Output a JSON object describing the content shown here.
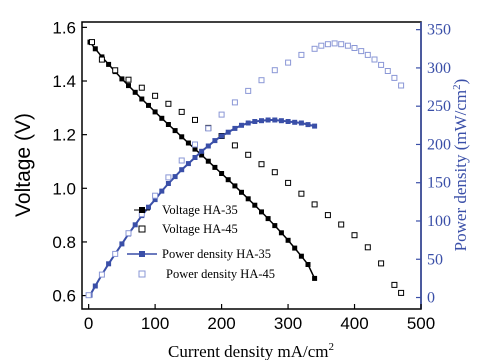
{
  "chart_data": {
    "type": "line",
    "xlabel": "Current density mA/cm",
    "xlabel_sup": "2",
    "ylabel_left": "Voltage (V)",
    "ylabel_right": "Power density (mW/cm",
    "ylabel_right_sup": "2",
    "ylabel_right_close": ")",
    "xlim": [
      -10,
      500
    ],
    "ylim_left": [
      0.55,
      1.62
    ],
    "ylim_right": [
      -15,
      360
    ],
    "x_ticks": [
      "0",
      "100",
      "200",
      "300",
      "400",
      "500"
    ],
    "y_left_ticks": [
      "0.6",
      "0.8",
      "1.0",
      "1.2",
      "1.4",
      "1.6"
    ],
    "y_right_ticks": [
      "0",
      "50",
      "100",
      "150",
      "200",
      "250",
      "300",
      "350"
    ],
    "legend_position": "lower-left",
    "colors": {
      "black": "#000000",
      "blue": "#3a4fa8",
      "light_blue": "#8a97d6"
    },
    "series": [
      {
        "name": "Voltage HA-35",
        "axis": "left",
        "marker": "filled-square",
        "color": "#000000",
        "x": [
          2,
          10,
          20,
          30,
          40,
          50,
          60,
          70,
          80,
          90,
          100,
          110,
          120,
          130,
          140,
          150,
          160,
          170,
          180,
          190,
          200,
          210,
          220,
          230,
          240,
          250,
          260,
          270,
          280,
          290,
          300,
          310,
          320,
          330,
          340
        ],
        "y": [
          1.545,
          1.52,
          1.49,
          1.462,
          1.435,
          1.408,
          1.383,
          1.358,
          1.333,
          1.309,
          1.285,
          1.261,
          1.238,
          1.215,
          1.192,
          1.169,
          1.146,
          1.124,
          1.101,
          1.078,
          1.055,
          1.032,
          1.009,
          0.985,
          0.961,
          0.937,
          0.912,
          0.887,
          0.861,
          0.834,
          0.806,
          0.777,
          0.747,
          0.716,
          0.664
        ]
      },
      {
        "name": "Voltage HA-45",
        "axis": "left",
        "marker": "open-square",
        "color": "#000000",
        "x": [
          5,
          20,
          40,
          60,
          80,
          100,
          120,
          140,
          160,
          180,
          200,
          220,
          240,
          260,
          280,
          300,
          320,
          340,
          360,
          380,
          400,
          420,
          440,
          460,
          470
        ],
        "y": [
          1.545,
          1.48,
          1.44,
          1.405,
          1.375,
          1.345,
          1.315,
          1.285,
          1.255,
          1.225,
          1.195,
          1.16,
          1.125,
          1.09,
          1.06,
          1.02,
          0.98,
          0.94,
          0.9,
          0.865,
          0.825,
          0.78,
          0.72,
          0.64,
          0.61
        ]
      },
      {
        "name": "Power density HA-35",
        "axis": "right",
        "marker": "filled-square-line",
        "color": "#3a4fa8",
        "x": [
          2,
          10,
          20,
          30,
          40,
          50,
          60,
          70,
          80,
          90,
          100,
          110,
          120,
          130,
          140,
          150,
          160,
          170,
          180,
          190,
          200,
          210,
          220,
          230,
          240,
          250,
          260,
          270,
          280,
          290,
          300,
          310,
          320,
          330,
          340
        ],
        "y": [
          3,
          15,
          30,
          44,
          57,
          70,
          83,
          95,
          107,
          118,
          128,
          139,
          149,
          158,
          167,
          175,
          183,
          191,
          198,
          205,
          211,
          216,
          221,
          225,
          228,
          230,
          231,
          232,
          232,
          231,
          230,
          229,
          228,
          226,
          224
        ]
      },
      {
        "name": "Power density HA-45",
        "axis": "right",
        "marker": "open-square",
        "color": "#8a97d6",
        "x": [
          0,
          20,
          40,
          60,
          80,
          100,
          120,
          140,
          160,
          180,
          200,
          220,
          240,
          260,
          280,
          300,
          320,
          340,
          350,
          360,
          370,
          380,
          390,
          400,
          410,
          420,
          430,
          440,
          450,
          460,
          470
        ],
        "y": [
          3,
          30,
          57,
          84,
          109,
          133,
          157,
          179,
          200,
          221,
          239,
          255,
          270,
          284,
          297,
          307,
          317,
          325,
          329,
          331,
          332,
          331,
          329,
          326,
          322,
          317,
          311,
          304,
          296,
          287,
          277
        ]
      }
    ]
  }
}
